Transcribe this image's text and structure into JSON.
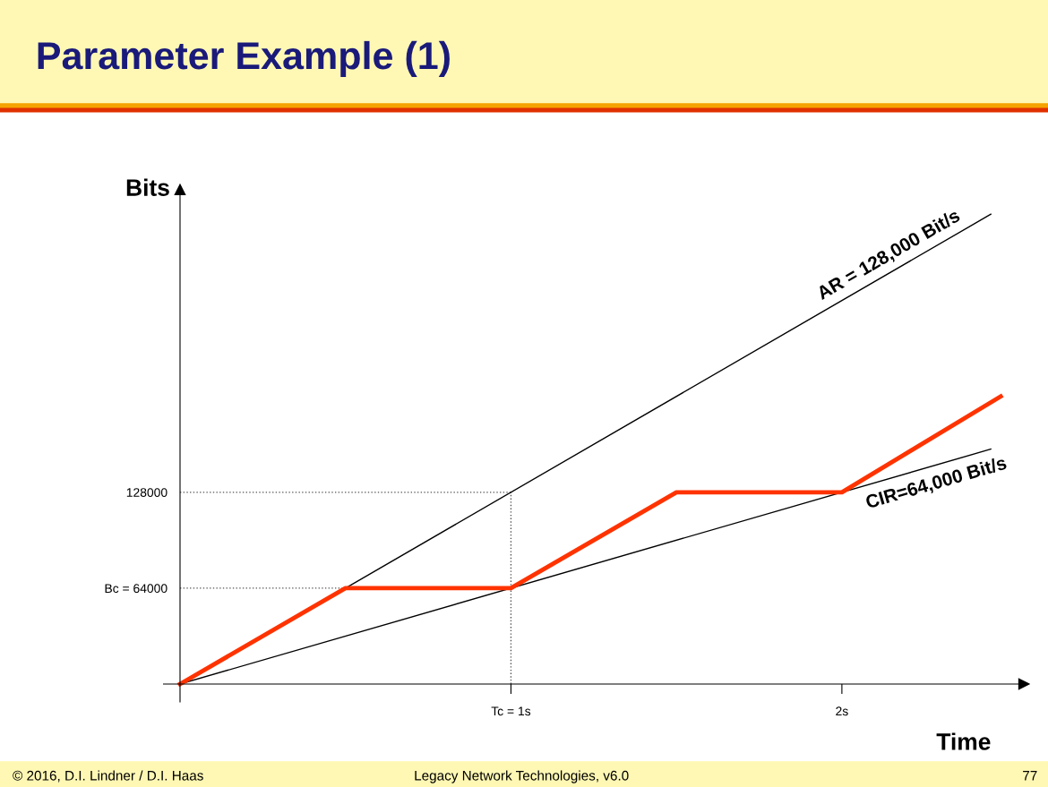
{
  "chart_data": {
    "type": "line",
    "title": "Parameter Example (1)",
    "xlabel": "Time",
    "ylabel": "Bits",
    "series": [
      {
        "name": "AR = 128,000 Bit/s",
        "color": "#000000",
        "x": [
          0,
          2.45
        ],
        "values": [
          0,
          313600
        ]
      },
      {
        "name": "CIR=64,000 Bit/s",
        "color": "#000000",
        "x": [
          0,
          2.45
        ],
        "values": [
          0,
          156800
        ]
      },
      {
        "color": "#ff3300",
        "x": [
          0,
          0.5,
          1,
          1.5,
          2,
          2.48
        ],
        "values": [
          0,
          64000,
          64000,
          128000,
          128000,
          192000
        ]
      }
    ],
    "xlim": [
      -0.05,
      2.55
    ],
    "ylim": [
      -12000,
      330000
    ],
    "xticks": [
      {
        "value": 1,
        "label": "Tc = 1s"
      },
      {
        "value": 2,
        "label": "2s"
      }
    ],
    "yticks": [
      {
        "value": 64000,
        "label": "Bc = 64000"
      },
      128000
    ],
    "ref_lines": [
      {
        "axis": "y",
        "value": 128000,
        "color": "#555555",
        "line_style": "dotted"
      },
      {
        "axis": "y",
        "value": 64000,
        "color": "#555555",
        "line_style": "dotted"
      },
      {
        "axis": "x",
        "value": 1,
        "color": "#555555",
        "line_style": "dotted"
      }
    ],
    "annotations": [
      "© 2016, D.I. Lindner / D.I. Haas",
      "Legacy Network Technologies, v6.0",
      "77"
    ],
    "grid": false,
    "legend": false,
    "marker": "none",
    "line_style": "solid"
  }
}
